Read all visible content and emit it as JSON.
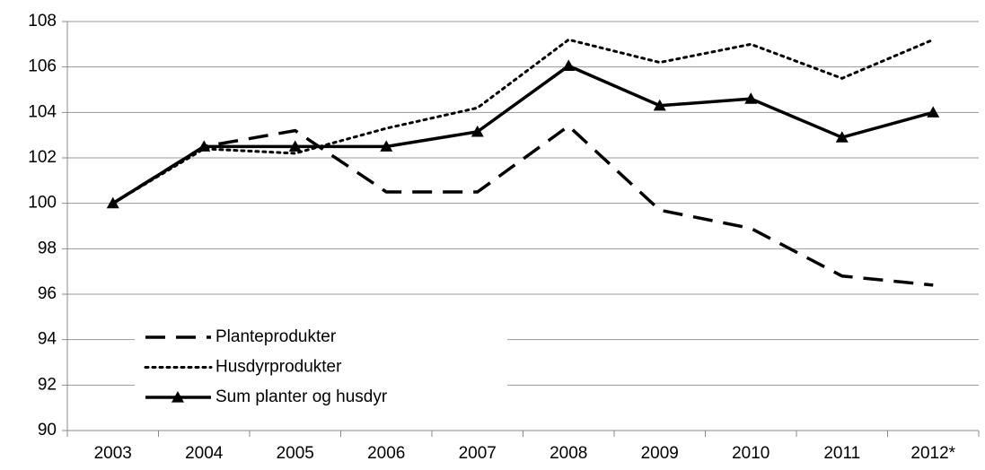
{
  "chart_data": {
    "type": "line",
    "categories": [
      "2003",
      "2004",
      "2005",
      "2006",
      "2007",
      "2008",
      "2009",
      "2010",
      "2011",
      "2012*"
    ],
    "series": [
      {
        "name": "Planteprodukter",
        "color": "#000000",
        "dash": "dashed",
        "values": [
          100,
          102.5,
          103.2,
          100.5,
          100.5,
          103.4,
          99.7,
          98.9,
          96.8,
          96.4
        ]
      },
      {
        "name": "Husdyrprodukter",
        "color": "#000000",
        "dash": "dotted",
        "values": [
          100,
          102.4,
          102.2,
          103.3,
          104.2,
          107.2,
          106.2,
          107.0,
          105.5,
          107.2
        ]
      },
      {
        "name": "Sum planter og husdyr",
        "color": "#000000",
        "dash": "solid",
        "marker": "triangle",
        "values": [
          100,
          102.5,
          102.5,
          102.5,
          103.15,
          106.05,
          104.3,
          104.6,
          102.9,
          104.0
        ]
      }
    ],
    "ylim": [
      90,
      108
    ],
    "yticks": [
      90,
      92,
      94,
      96,
      98,
      100,
      102,
      104,
      106,
      108
    ],
    "grid": true,
    "legend": "lower left"
  }
}
